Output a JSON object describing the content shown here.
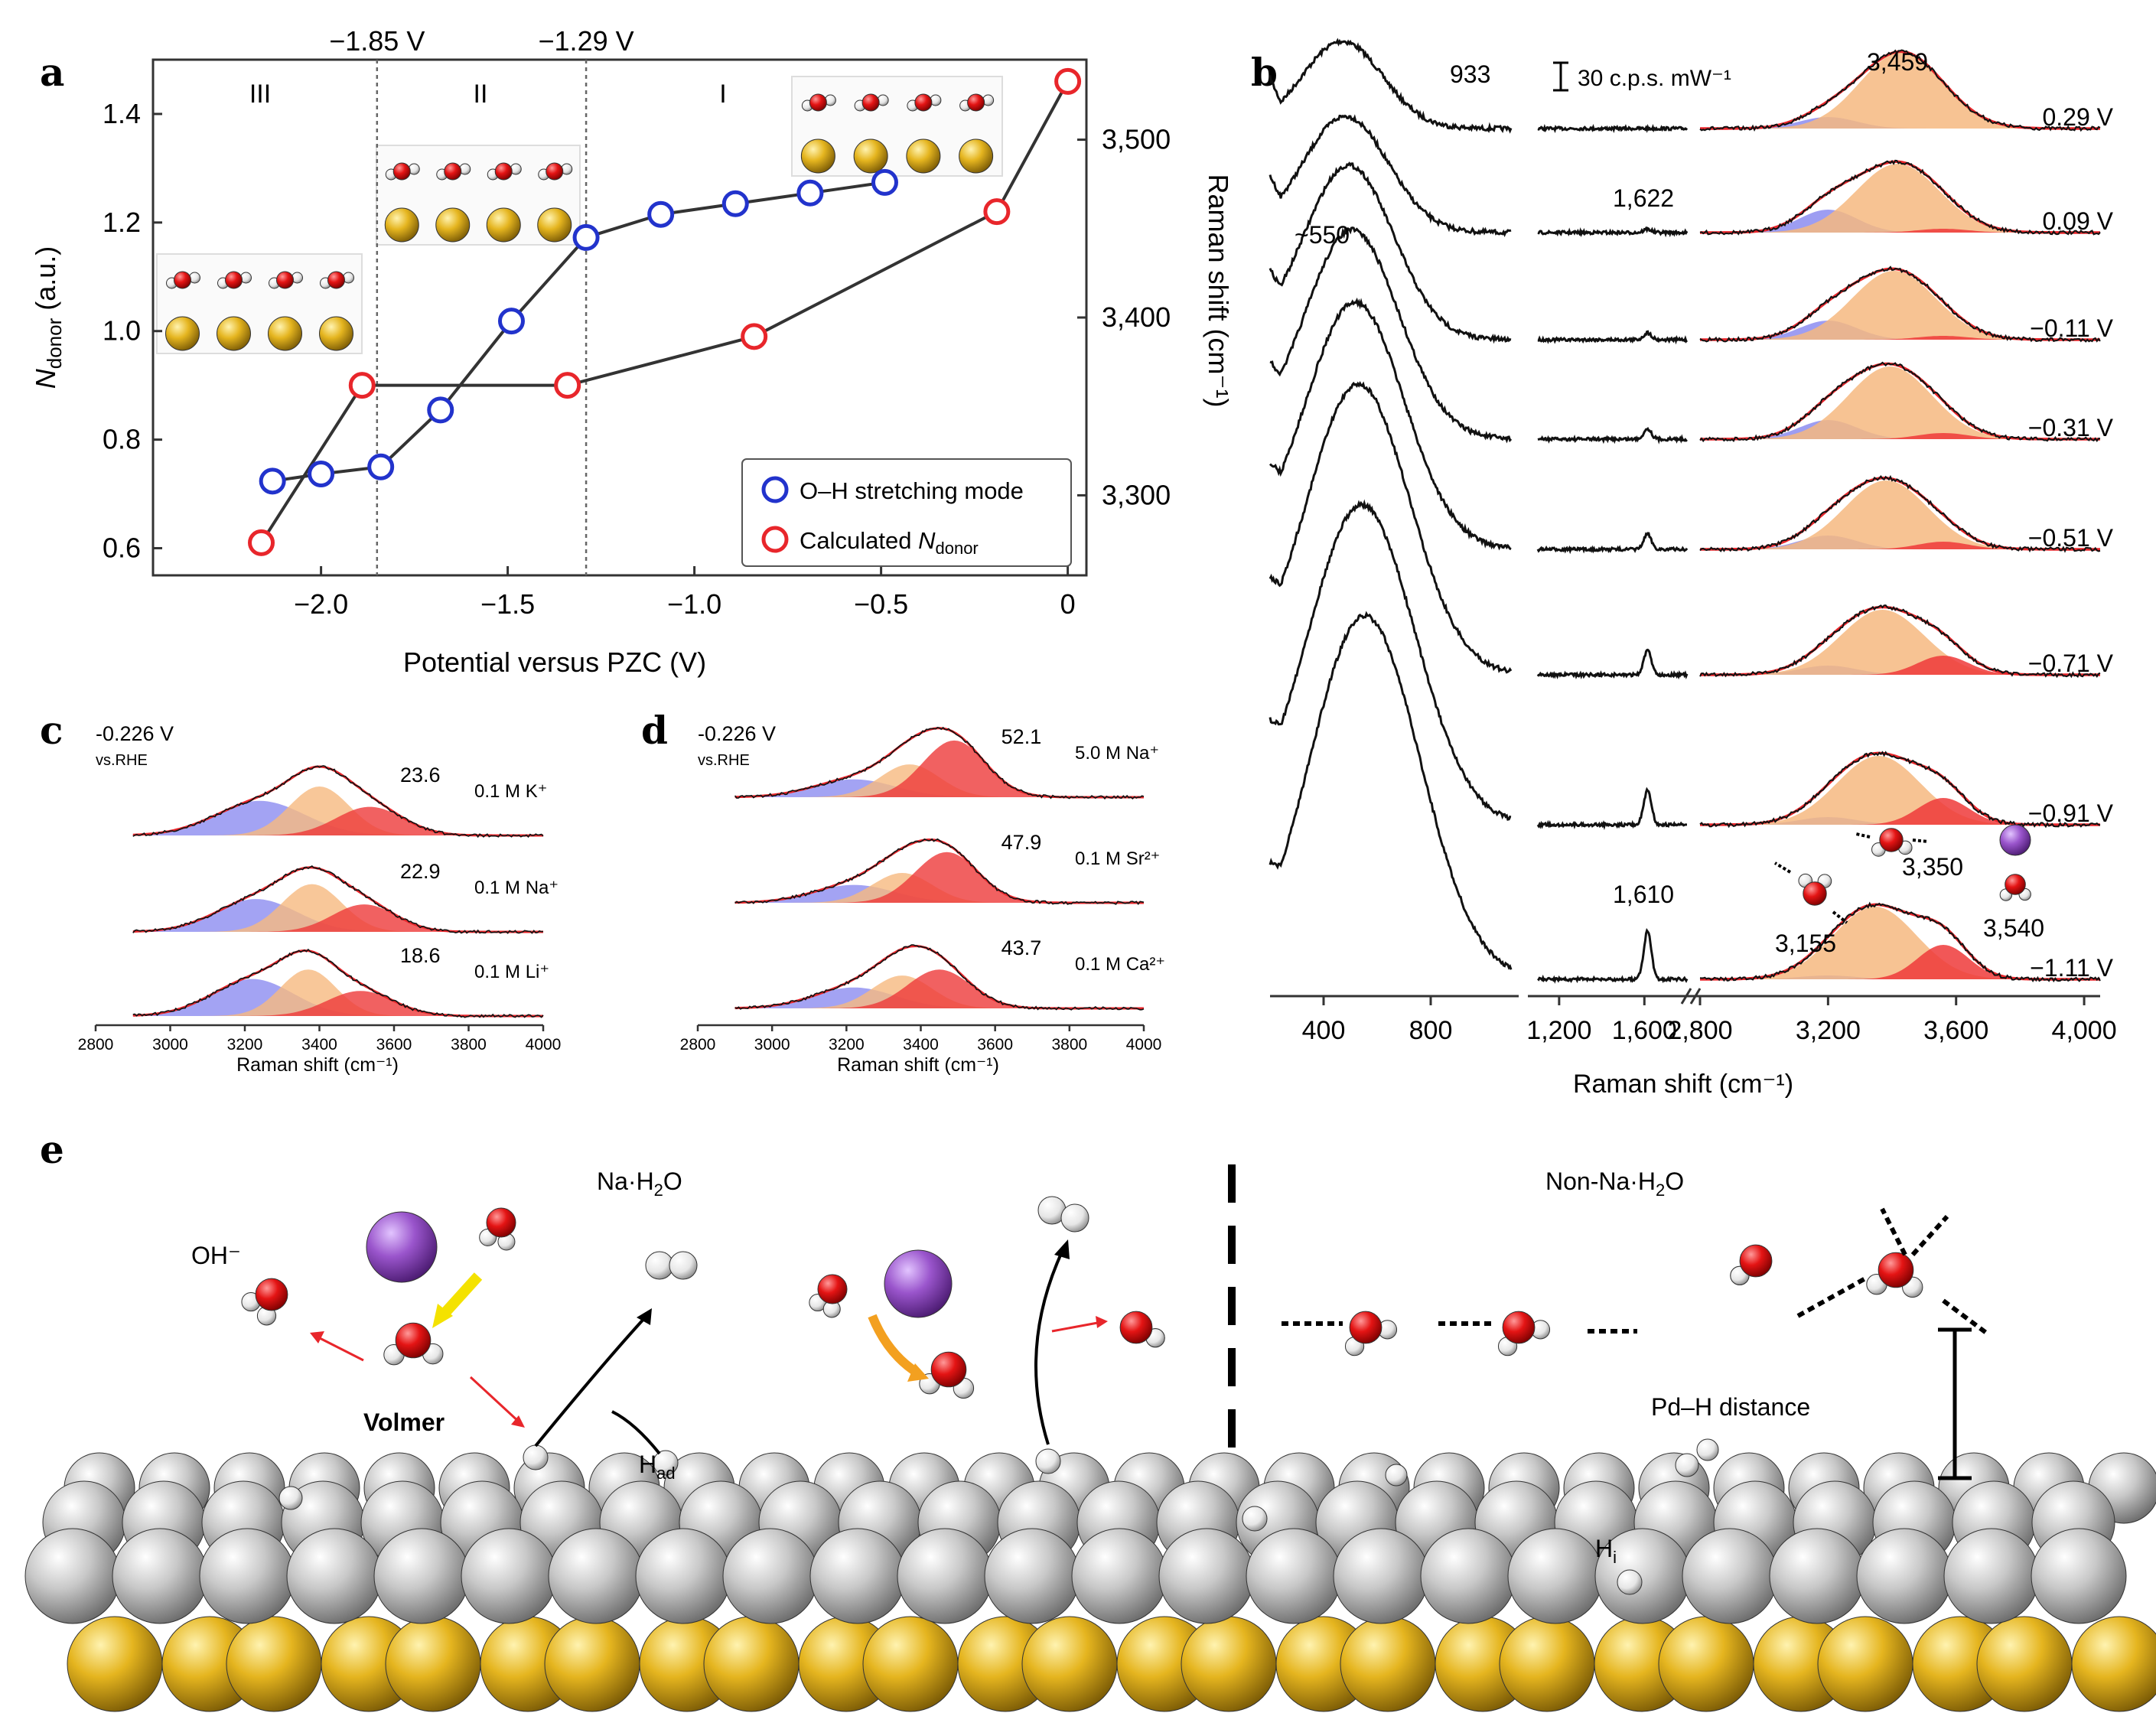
{
  "panel_labels": {
    "a": "a",
    "b": "b",
    "c": "c",
    "d": "d",
    "e": "e"
  },
  "colors": {
    "blue_series": "#2233cc",
    "red_series": "#e8262b",
    "band_blue": "#8c8cf0",
    "band_orange": "#f6b980",
    "band_red": "#ee3a3a",
    "gold": "#e3b21d",
    "silver": "#c9c9c9",
    "oxygen": "#e41414",
    "sodium": "#9a55cc"
  },
  "chart_data": [
    {
      "id": "a",
      "type": "line",
      "xlabel": "Potential versus PZC (V)",
      "ylabel_left_main": "N",
      "ylabel_left_sub": "donor",
      "ylabel_left_tail": " (a.u.)",
      "ylabel_right": "Raman shift (cm⁻¹)",
      "xlim": [
        -2.45,
        0.05
      ],
      "ylim_left": [
        0.55,
        1.5
      ],
      "ylim_right": [
        3255,
        3545
      ],
      "xticks": [
        "−2.0",
        "−1.5",
        "−1.0",
        "−0.5",
        "0"
      ],
      "xtick_values": [
        -2.0,
        -1.5,
        -1.0,
        -0.5,
        0
      ],
      "yticks_left": [
        "0.6",
        "0.8",
        "1.0",
        "1.2",
        "1.4"
      ],
      "yticks_left_values": [
        0.6,
        0.8,
        1.0,
        1.2,
        1.4
      ],
      "yticks_right": [
        "3,300",
        "3,400",
        "3,500"
      ],
      "yticks_right_values": [
        3300,
        3400,
        3500
      ],
      "regions": [
        "III",
        "II",
        "I"
      ],
      "dividers": [
        {
          "x": -1.85,
          "label": "−1.85 V"
        },
        {
          "x": -1.29,
          "label": "−1.29 V"
        }
      ],
      "series": [
        {
          "name": "O–H stretching mode",
          "axis": "right",
          "color": "#2233cc",
          "x": [
            -2.13,
            -2.0,
            -1.84,
            -1.68,
            -1.49,
            -1.29,
            -1.09,
            -0.89,
            -0.69,
            -0.49
          ],
          "y": [
            3308,
            3312,
            3316,
            3348,
            3398,
            3445,
            3458,
            3464,
            3470,
            3476
          ]
        },
        {
          "name_main": "Calculated ",
          "name_sub": "donor",
          "name": "Calculated Ndonor",
          "axis": "left",
          "color": "#e8262b",
          "x": [
            -2.16,
            -1.89,
            -1.34,
            -0.84,
            -0.19,
            0.0
          ],
          "y": [
            0.61,
            0.9,
            0.9,
            0.99,
            1.22,
            1.46
          ]
        }
      ]
    },
    {
      "id": "b",
      "type": "line",
      "xlabel": "Raman shift (cm⁻¹)",
      "xticks_low": [
        "400",
        "800"
      ],
      "xtick_low_values": [
        400,
        800
      ],
      "xticks_mid": [
        "1,200",
        "1,600"
      ],
      "xtick_mid_values": [
        1200,
        1600
      ],
      "xticks_high": [
        "2,800",
        "3,200",
        "3,600",
        "4,000"
      ],
      "xtick_high_values": [
        2800,
        3200,
        3600,
        4000
      ],
      "scale_bar": "30 c.p.s. mW⁻¹",
      "potentials": [
        "0.29 V",
        "0.09 V",
        "−0.11 V",
        "−0.31 V",
        "−0.51 V",
        "−0.71 V",
        "−0.91 V",
        "−1.11 V"
      ],
      "broad_peak_heights": [
        0.3,
        0.4,
        0.6,
        0.72,
        0.85,
        1.0,
        1.1,
        1.25
      ],
      "bend_peak_heights": [
        0.0,
        0.05,
        0.1,
        0.15,
        0.22,
        0.35,
        0.5,
        0.7
      ],
      "oh_band_fractions": [
        {
          "blue": 0.15,
          "orange": 1.0,
          "red": 0.0
        },
        {
          "blue": 0.3,
          "orange": 0.9,
          "red": 0.05
        },
        {
          "blue": 0.25,
          "orange": 0.9,
          "red": 0.05
        },
        {
          "blue": 0.25,
          "orange": 0.95,
          "red": 0.08
        },
        {
          "blue": 0.18,
          "orange": 0.9,
          "red": 0.1
        },
        {
          "blue": 0.12,
          "orange": 0.85,
          "red": 0.25
        },
        {
          "blue": 0.1,
          "orange": 0.9,
          "red": 0.35
        },
        {
          "blue": 0.05,
          "orange": 0.95,
          "red": 0.45
        }
      ],
      "annotations": {
        "p933": "933",
        "p1622": "1,622",
        "p550": "~550",
        "p1610": "1,610",
        "p3459": "3,459",
        "p3350": "3,350",
        "p3155": "3,155",
        "p3540": "3,540"
      }
    },
    {
      "id": "c",
      "type": "area",
      "xlabel": "Raman shift (cm⁻¹)",
      "xlim": [
        2800,
        4000
      ],
      "xticks": [
        "2800",
        "3000",
        "3200",
        "3400",
        "3600",
        "3800",
        "4000"
      ],
      "xtick_values": [
        2800,
        3000,
        3200,
        3400,
        3600,
        3800,
        4000
      ],
      "potential": "-0.226 V",
      "ref": "vs.RHE",
      "spectra": [
        {
          "label": "0.1 M K⁺",
          "value": "23.6",
          "bands": [
            {
              "c": 3240,
              "w": 120,
              "h": 0.58
            },
            {
              "c": 3400,
              "w": 80,
              "h": 0.82
            },
            {
              "c": 3535,
              "w": 90,
              "h": 0.48
            }
          ]
        },
        {
          "label": "0.1 M Na⁺",
          "value": "22.9",
          "bands": [
            {
              "c": 3230,
              "w": 110,
              "h": 0.55
            },
            {
              "c": 3380,
              "w": 80,
              "h": 0.8
            },
            {
              "c": 3520,
              "w": 85,
              "h": 0.46
            }
          ]
        },
        {
          "label": "0.1 M Li⁺",
          "value": "18.6",
          "bands": [
            {
              "c": 3220,
              "w": 110,
              "h": 0.62
            },
            {
              "c": 3370,
              "w": 75,
              "h": 0.78
            },
            {
              "c": 3510,
              "w": 90,
              "h": 0.42
            }
          ]
        }
      ]
    },
    {
      "id": "d",
      "type": "area",
      "xlabel": "Raman shift (cm⁻¹)",
      "xlim": [
        2800,
        4000
      ],
      "xticks": [
        "2800",
        "3000",
        "3200",
        "3400",
        "3600",
        "3800",
        "4000"
      ],
      "xtick_values": [
        2800,
        3000,
        3200,
        3400,
        3600,
        3800,
        4000
      ],
      "potential": "-0.226 V",
      "ref": "vs.RHE",
      "spectra": [
        {
          "label": "5.0 M Na⁺",
          "value": "52.1",
          "bands": [
            {
              "c": 3220,
              "w": 110,
              "h": 0.3
            },
            {
              "c": 3370,
              "w": 80,
              "h": 0.55
            },
            {
              "c": 3490,
              "w": 85,
              "h": 0.95
            }
          ]
        },
        {
          "label": "0.1 M Sr²⁺",
          "value": "47.9",
          "bands": [
            {
              "c": 3220,
              "w": 110,
              "h": 0.3
            },
            {
              "c": 3350,
              "w": 80,
              "h": 0.5
            },
            {
              "c": 3470,
              "w": 85,
              "h": 0.85
            }
          ]
        },
        {
          "label": "0.1 M Ca²⁺",
          "value": "43.7",
          "bands": [
            {
              "c": 3220,
              "w": 110,
              "h": 0.35
            },
            {
              "c": 3350,
              "w": 80,
              "h": 0.55
            },
            {
              "c": 3450,
              "w": 85,
              "h": 0.65
            }
          ]
        }
      ]
    }
  ],
  "panel_e": {
    "na_h2o_main": "Na·H",
    "na_h2o_sub": "2",
    "na_h2o_tail": "O",
    "non_na_main": "Non-Na·H",
    "non_na_sub": "2",
    "non_na_tail": "O",
    "oh_minus": "OH⁻",
    "volmer": "Volmer",
    "h_ad_main": "H",
    "h_ad_sub": "ad",
    "h_i_main": "H",
    "h_i_sub": "i",
    "pd_h": "Pd–H distance"
  }
}
